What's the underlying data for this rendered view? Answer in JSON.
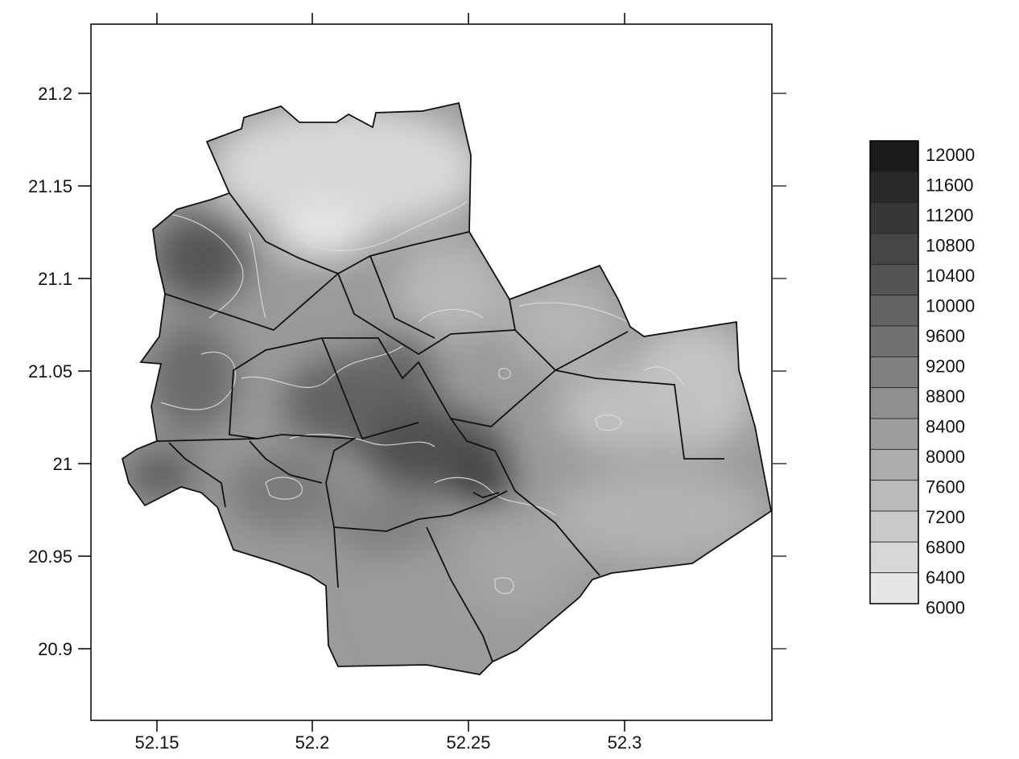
{
  "chart_data": {
    "type": "heatmap",
    "title": "",
    "xlabel": "",
    "ylabel": "",
    "x_ticks": [
      52.15,
      52.2,
      52.25,
      52.3
    ],
    "y_ticks": [
      21.2,
      21.15,
      21.1,
      21.05,
      21,
      20.95,
      20.9
    ],
    "x_tick_labels": [
      "52.15",
      "52.2",
      "52.25",
      "52.3"
    ],
    "y_tick_labels": [
      "21.2",
      "21.15",
      "21.1",
      "21.05",
      "21",
      "20.95",
      "20.9"
    ],
    "xlim": [
      52.13,
      52.348
    ],
    "ylim": [
      20.862,
      21.238
    ],
    "colorbar": {
      "min": 6000,
      "max": 12000,
      "step": 400,
      "labels": [
        "12000",
        "11600",
        "11200",
        "10800",
        "10400",
        "10000",
        "9600",
        "9200",
        "8800",
        "8400",
        "8000",
        "7600",
        "7200",
        "6800",
        "6400",
        "6000"
      ],
      "color_low": "#e6e6e6",
      "color_high": "#1a1a1a"
    },
    "grid": false,
    "legend_position": "right"
  }
}
